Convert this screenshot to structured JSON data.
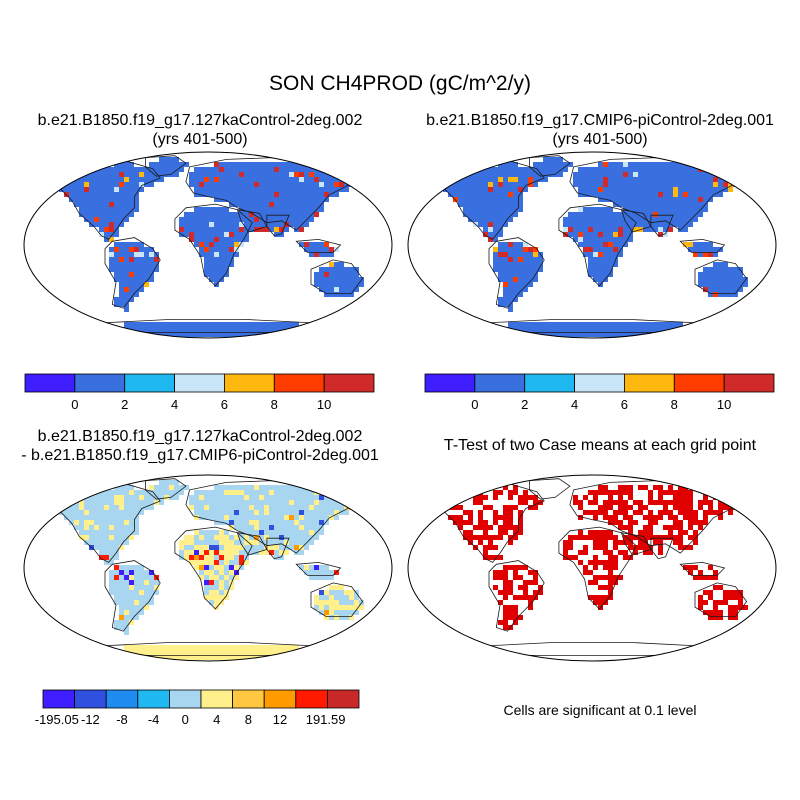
{
  "main_title": "SON CH4PROD (gC/m^2/y)",
  "panels": {
    "top_left": {
      "title": "b.e21.B1850.f19_g17.127kaControl-2deg.002",
      "subtitle": "(yrs 401-500)"
    },
    "top_right": {
      "title": "b.e21.B1850.f19_g17.CMIP6-piControl-2deg.001",
      "subtitle": "(yrs 401-500)"
    },
    "bottom_left": {
      "title_line1": "b.e21.B1850.f19_g17.127kaControl-2deg.002",
      "title_line2": "- b.e21.B1850.f19_g17.CMIP6-piControl-2deg.001"
    },
    "bottom_right": {
      "title": "T-Test of two Case means at each grid point",
      "note": "Cells are significant at 0.1 level"
    }
  },
  "colorbars": {
    "absolute": {
      "colors": [
        "#3f1fff",
        "#3a6fe0",
        "#20b8f0",
        "#c8e6f8",
        "#ffb810",
        "#ff3c00",
        "#d02a2a"
      ],
      "labels": [
        "0",
        "2",
        "4",
        "6",
        "8",
        "10"
      ]
    },
    "difference": {
      "colors": [
        "#3f1fff",
        "#3050e0",
        "#1e8cf0",
        "#20b8f0",
        "#a8d6f0",
        "#fff08c",
        "#ffc840",
        "#ff9a00",
        "#ff1a00",
        "#c82828"
      ],
      "labels": [
        "-195.05",
        "-12",
        "-8",
        "-4",
        "0",
        "4",
        "8",
        "12",
        "191.59"
      ]
    }
  },
  "map_colors": {
    "ocean": "#ffffff",
    "land_abs": "#3a6fe0",
    "land_diff": "#a8d6f0",
    "land_diff_warm": "#fff08c",
    "antarctica_diff": "#fff08c",
    "significant": "#e00000",
    "coast": "#1a1a1a"
  }
}
